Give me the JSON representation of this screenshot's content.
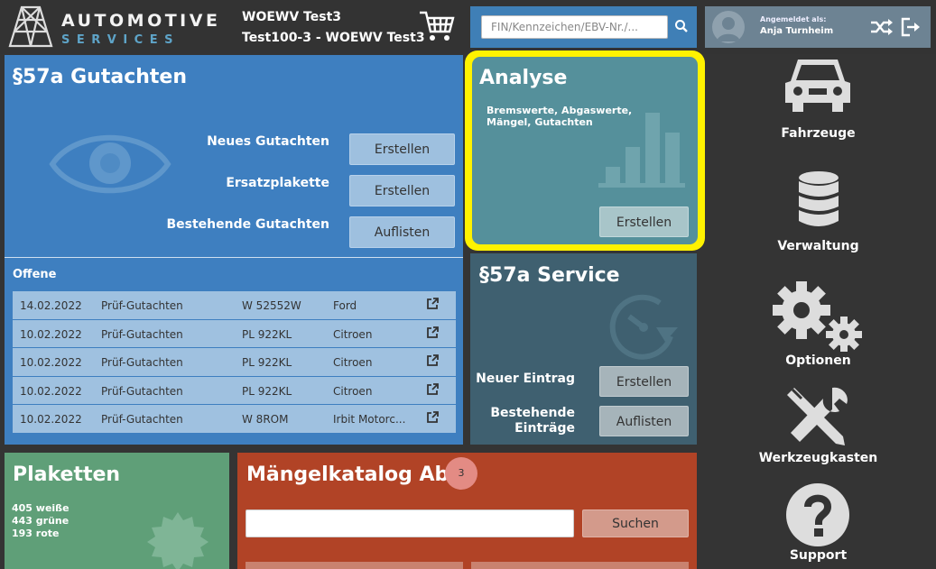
{
  "header": {
    "logo_line1": "AUTOMOTIVE",
    "logo_line2": "SERVICES",
    "org_line1": "WOEWV Test3",
    "org_line2": "Test100-3 - WOEWV Test3",
    "search_placeholder": "FIN/Kennzeichen/EBV-Nr./...",
    "logged_in_label": "Angemeldet als:",
    "user_name": "Anja Turnheim"
  },
  "gutachten": {
    "title": "§57a Gutachten",
    "rows": [
      {
        "label": "Neues Gutachten",
        "button": "Erstellen"
      },
      {
        "label": "Ersatzplakette",
        "button": "Erstellen"
      },
      {
        "label": "Bestehende Gutachten",
        "button": "Auflisten"
      }
    ],
    "open_title": "Offene",
    "open_items": [
      {
        "date": "14.02.2022",
        "type": "Prüf-Gutachten",
        "plate": "W 52552W",
        "brand": "Ford"
      },
      {
        "date": "10.02.2022",
        "type": "Prüf-Gutachten",
        "plate": "PL 922KL",
        "brand": "Citroen"
      },
      {
        "date": "10.02.2022",
        "type": "Prüf-Gutachten",
        "plate": "PL 922KL",
        "brand": "Citroen"
      },
      {
        "date": "10.02.2022",
        "type": "Prüf-Gutachten",
        "plate": "PL 922KL",
        "brand": "Citroen"
      },
      {
        "date": "10.02.2022",
        "type": "Prüf-Gutachten",
        "plate": "W 8ROM",
        "brand": "Irbit Motorc..."
      }
    ]
  },
  "analyse": {
    "title": "Analyse",
    "subtitle": "Bremswerte, Abgaswerte, Mängel, Gutachten",
    "button": "Erstellen"
  },
  "service": {
    "title": "§57a Service",
    "row1_label": "Neuer Eintrag",
    "row1_button": "Erstellen",
    "row2_label_line1": "Bestehende",
    "row2_label_line2": "Einträge",
    "row2_button": "Auflisten"
  },
  "plaketten": {
    "title": "Plaketten",
    "stats": [
      "405 weiße",
      "443 grüne",
      "193 rote"
    ]
  },
  "maengel": {
    "title": "Mängelkatalog Abo",
    "badge": "3",
    "search_button": "Suchen"
  },
  "nav": [
    {
      "label": "Fahrzeuge",
      "icon": "car-icon"
    },
    {
      "label": "Verwaltung",
      "icon": "database-icon"
    },
    {
      "label": "Optionen",
      "icon": "gears-icon"
    },
    {
      "label": "Werkzeugkasten",
      "icon": "tools-icon"
    },
    {
      "label": "Support",
      "icon": "question-icon"
    }
  ],
  "colors": {
    "gutachten": "#3e7fc0",
    "analyse": "#55909b",
    "analyse_highlight": "#fff200",
    "service": "#3f6070",
    "plaketten": "#5f9f78",
    "maengel": "#b14326",
    "background": "#343434"
  }
}
